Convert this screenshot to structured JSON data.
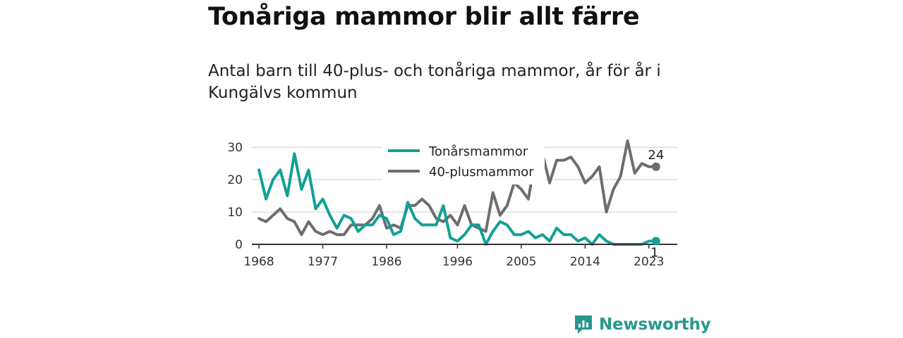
{
  "header": {
    "title": "Tonåriga mammor blir allt färre",
    "subtitle": "Antal barn till 40-plus- och tonåriga mammor, år för år i Kungälvs kommun"
  },
  "brand": {
    "name": "Newsworthy",
    "icon": "newsworthy-logo-icon",
    "color": "#27988f"
  },
  "chart_data": {
    "type": "line",
    "title": "",
    "xlabel": "",
    "ylabel": "",
    "x": [
      1968,
      1969,
      1970,
      1971,
      1972,
      1973,
      1974,
      1975,
      1976,
      1977,
      1978,
      1979,
      1980,
      1981,
      1982,
      1983,
      1984,
      1985,
      1986,
      1987,
      1988,
      1989,
      1990,
      1991,
      1992,
      1993,
      1994,
      1995,
      1996,
      1997,
      1998,
      1999,
      2000,
      2001,
      2002,
      2003,
      2004,
      2005,
      2006,
      2007,
      2008,
      2009,
      2010,
      2011,
      2012,
      2013,
      2014,
      2015,
      2016,
      2017,
      2018,
      2019,
      2020,
      2021,
      2022,
      2023,
      2024
    ],
    "xticks": [
      1968,
      1977,
      1986,
      1996,
      2005,
      2014,
      2023
    ],
    "yticks": [
      0,
      10,
      20,
      30
    ],
    "xlim": [
      1967,
      2027
    ],
    "ylim": [
      0,
      32
    ],
    "grid": true,
    "legend": "top-center",
    "series": [
      {
        "name": "Tonårsmammor",
        "color": "#13a095",
        "values": [
          23,
          14,
          20,
          23,
          15,
          28,
          17,
          23,
          11,
          14,
          9,
          5,
          9,
          8,
          4,
          6,
          6,
          9,
          8,
          3,
          4,
          13,
          8,
          6,
          6,
          6,
          12,
          2,
          1,
          3,
          6,
          6,
          0,
          4,
          7,
          6,
          3,
          3,
          4,
          2,
          3,
          1,
          5,
          3,
          3,
          1,
          2,
          0,
          3,
          1,
          0,
          0,
          0,
          0,
          0,
          1,
          1
        ],
        "end_label": "1"
      },
      {
        "name": "40-plusmammor",
        "color": "#6d6d72",
        "values": [
          8,
          7,
          9,
          11,
          8,
          7,
          3,
          7,
          4,
          3,
          4,
          3,
          3,
          6,
          6,
          6,
          8,
          12,
          5,
          6,
          5,
          12,
          12,
          14,
          12,
          8,
          7,
          9,
          6,
          12,
          6,
          5,
          4,
          16,
          9,
          12,
          19,
          17,
          14,
          27,
          28,
          19,
          26,
          26,
          27,
          24,
          19,
          21,
          24,
          10,
          17,
          21,
          32,
          22,
          25,
          24,
          24
        ],
        "end_label": "24"
      }
    ]
  }
}
